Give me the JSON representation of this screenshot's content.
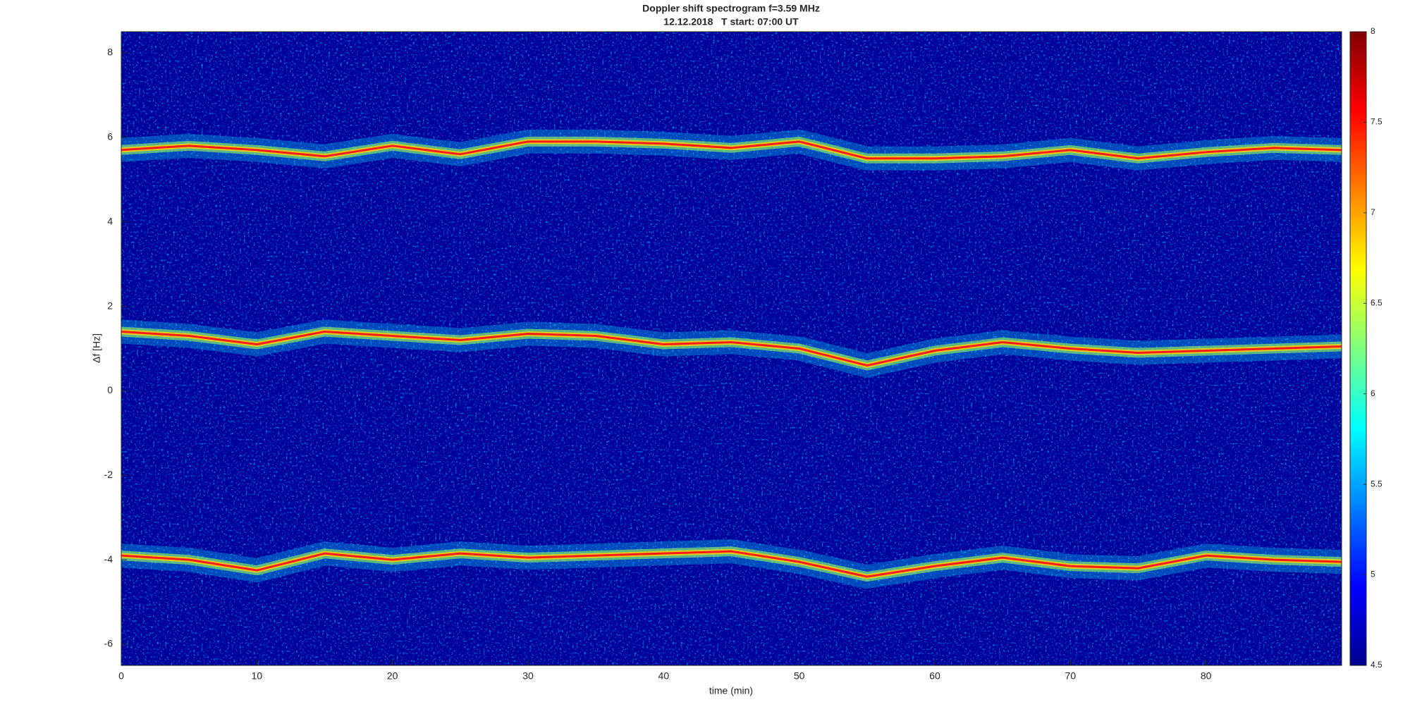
{
  "chart_data": {
    "type": "spectrogram",
    "title": "Doppler shift spectrogram f=3.59 MHz",
    "subtitle": "12.12.2018   T start: 07:00 UT",
    "x_label": "time (min)",
    "y_label": "Δf [Hz]",
    "x": [
      0,
      5,
      10,
      15,
      20,
      25,
      30,
      35,
      40,
      45,
      50,
      55,
      60,
      65,
      70,
      75,
      80,
      85,
      90
    ],
    "series": [
      {
        "color": "#ff1a1a",
        "values": [
          5.7,
          5.8,
          5.7,
          5.55,
          5.8,
          5.6,
          5.9,
          5.9,
          5.85,
          5.75,
          5.9,
          5.5,
          5.5,
          5.55,
          5.7,
          5.5,
          5.65,
          5.75,
          5.7
        ]
      },
      {
        "color": "#ff1a1a",
        "values": [
          1.4,
          1.3,
          1.1,
          1.4,
          1.3,
          1.2,
          1.35,
          1.3,
          1.1,
          1.15,
          1.0,
          0.6,
          0.95,
          1.15,
          1.0,
          0.9,
          0.95,
          1.0,
          1.05
        ]
      },
      {
        "color": "#ff1a1a",
        "values": [
          -3.9,
          -4.0,
          -4.25,
          -3.85,
          -4.0,
          -3.85,
          -3.95,
          -3.9,
          -3.85,
          -3.8,
          -4.05,
          -4.4,
          -4.15,
          -3.95,
          -4.15,
          -4.2,
          -3.9,
          -4.0,
          -4.05
        ]
      }
    ],
    "xlim": [
      0,
      90
    ],
    "xticks": [
      0,
      10,
      20,
      30,
      40,
      50,
      60,
      70,
      80
    ],
    "ylim": [
      -6.5,
      8.5
    ],
    "yticks": [
      -6,
      -4,
      -2,
      0,
      2,
      4,
      6,
      8
    ],
    "clim": [
      4.5,
      8
    ],
    "cticks": [
      4.5,
      5,
      5.5,
      6,
      6.5,
      7,
      7.5,
      8
    ]
  }
}
